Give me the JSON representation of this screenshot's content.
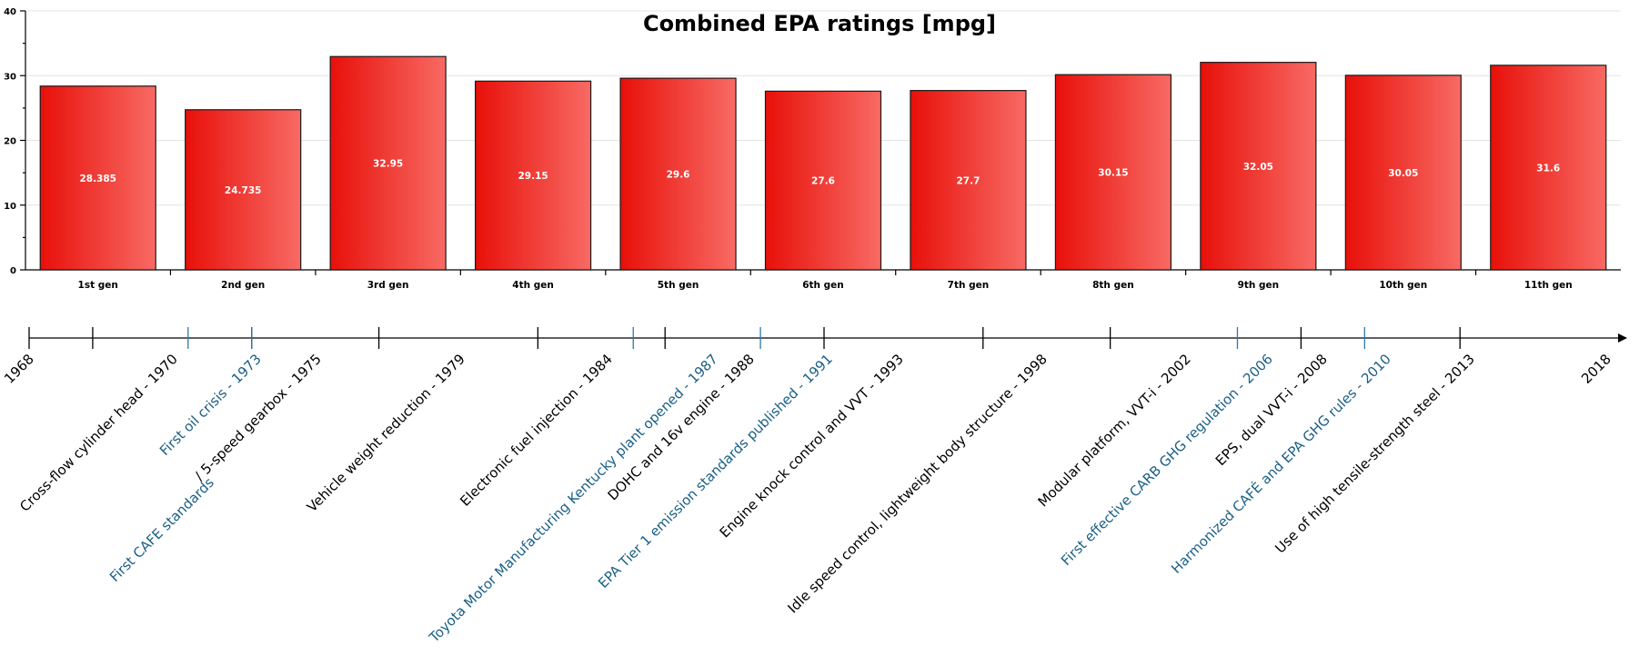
{
  "chart_data": {
    "type": "bar",
    "title": "Combined EPA ratings [mpg]",
    "categories": [
      "1st gen",
      "2nd gen",
      "3rd gen",
      "4th gen",
      "5th gen",
      "6th gen",
      "7th gen",
      "8th gen",
      "9th gen",
      "10th gen",
      "11th gen"
    ],
    "values": [
      28.385,
      24.735,
      32.95,
      29.15,
      29.6,
      27.6,
      27.7,
      30.15,
      32.05,
      30.05,
      31.6
    ],
    "value_labels": [
      "28.385",
      "24.735",
      "32.95",
      "29.15",
      "29.6",
      "27.6",
      "27.7",
      "30.15",
      "32.05",
      "30.05",
      "31.6"
    ],
    "ylim": [
      0,
      40
    ],
    "yticks": [
      0,
      10,
      20,
      30,
      40
    ],
    "ytick_labels": [
      "0",
      "10",
      "20",
      "30",
      "40"
    ],
    "grid": true,
    "xlabel": "",
    "ylabel": ""
  },
  "timeline": {
    "range": [
      1968,
      2018
    ],
    "endpoints": [
      "1968",
      "2018"
    ],
    "events": [
      {
        "year": 1970,
        "label": "Cross-flow cylinder head - 1970",
        "kind": "tech"
      },
      {
        "year": 1973,
        "label": "First oil crisis - 1973",
        "kind": "policy"
      },
      {
        "year": 1975,
        "label": "/ 5-speed gearbox - 1975",
        "kind": "tech"
      },
      {
        "year": 1975,
        "label": "First CAFE standards",
        "kind": "policy"
      },
      {
        "year": 1979,
        "label": "Vehicle weight reduction - 1979",
        "kind": "tech"
      },
      {
        "year": 1984,
        "label": "Electronic fuel injection - 1984",
        "kind": "tech"
      },
      {
        "year": 1987,
        "label": "Toyota Motor Manufacturing Kentucky plant opened - 1987",
        "kind": "policy"
      },
      {
        "year": 1988,
        "label": "DOHC and 16v engine - 1988",
        "kind": "tech"
      },
      {
        "year": 1991,
        "label": "EPA Tier 1 emission standards published - 1991",
        "kind": "policy"
      },
      {
        "year": 1993,
        "label": "Engine knock control and VVT - 1993",
        "kind": "tech"
      },
      {
        "year": 1998,
        "label": "Idle speed control, lightweight body structure - 1998",
        "kind": "tech"
      },
      {
        "year": 2002,
        "label": "Modular platform, VVT-i - 2002",
        "kind": "tech"
      },
      {
        "year": 2006,
        "label": "First effective CARB GHG regulation - 2006",
        "kind": "policy"
      },
      {
        "year": 2008,
        "label": "EPS, dual VVT-i - 2008",
        "kind": "tech"
      },
      {
        "year": 2010,
        "label": "Harmonized CAFÉ and EPA GHG rules - 2010",
        "kind": "policy"
      },
      {
        "year": 2013,
        "label": "Use of high tensile-strength steel - 2013",
        "kind": "tech"
      }
    ]
  },
  "colors": {
    "bar_dark": "#e8100a",
    "bar_light": "#f86a64",
    "tech_text": "#000000",
    "policy_text": "#1a5f86",
    "policy_tick": "#2b7aa6"
  }
}
